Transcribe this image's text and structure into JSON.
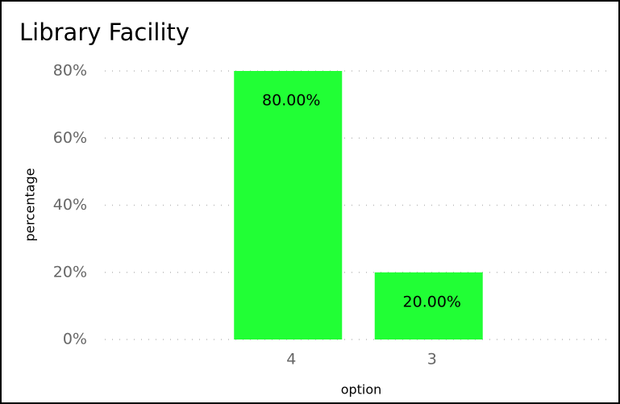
{
  "chart_data": {
    "type": "bar",
    "title": "Library Facility",
    "x_label": "option",
    "y_label": "percentage",
    "categories": [
      "4",
      "3"
    ],
    "values": [
      80,
      20
    ],
    "value_labels": [
      "80.00%",
      "20.00%"
    ],
    "color": "#21ff35",
    "ylim": [
      0,
      80
    ],
    "yticks": [
      {
        "value": 0,
        "label": "0%"
      },
      {
        "value": 20,
        "label": "20%"
      },
      {
        "value": 40,
        "label": "40%"
      },
      {
        "value": 60,
        "label": "60%"
      },
      {
        "value": 80,
        "label": "80%"
      }
    ],
    "grid": true
  }
}
